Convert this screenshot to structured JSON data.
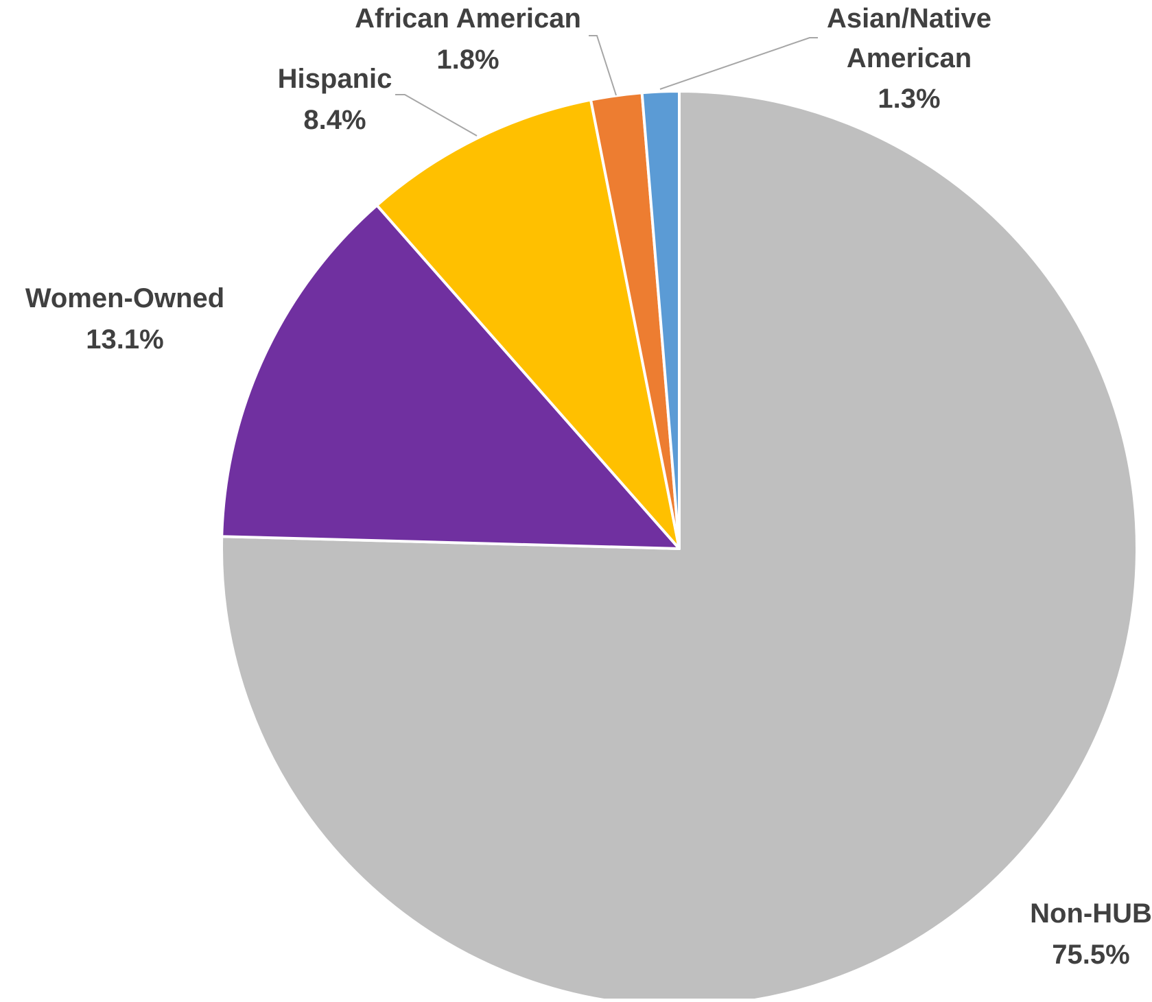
{
  "chart_data": {
    "type": "pie",
    "title": "",
    "start": "12 o'clock",
    "direction": "clockwise",
    "slices": [
      {
        "label": "Non-HUB",
        "value": 75.5,
        "value_label": "75.5%",
        "color": "#BFBFBF"
      },
      {
        "label": "Women-Owned",
        "value": 13.1,
        "value_label": "13.1%",
        "color": "#7030A0"
      },
      {
        "label": "Hispanic",
        "value": 8.4,
        "value_label": "8.4%",
        "color": "#FFC000"
      },
      {
        "label": "African American",
        "value": 1.8,
        "value_label": "1.8%",
        "color": "#ED7D31"
      },
      {
        "label": "Asian/Native American",
        "value": 1.3,
        "value_label": "1.3%",
        "color": "#5B9BD5"
      }
    ],
    "legend": "none",
    "data_labels": "outside with leader lines"
  }
}
